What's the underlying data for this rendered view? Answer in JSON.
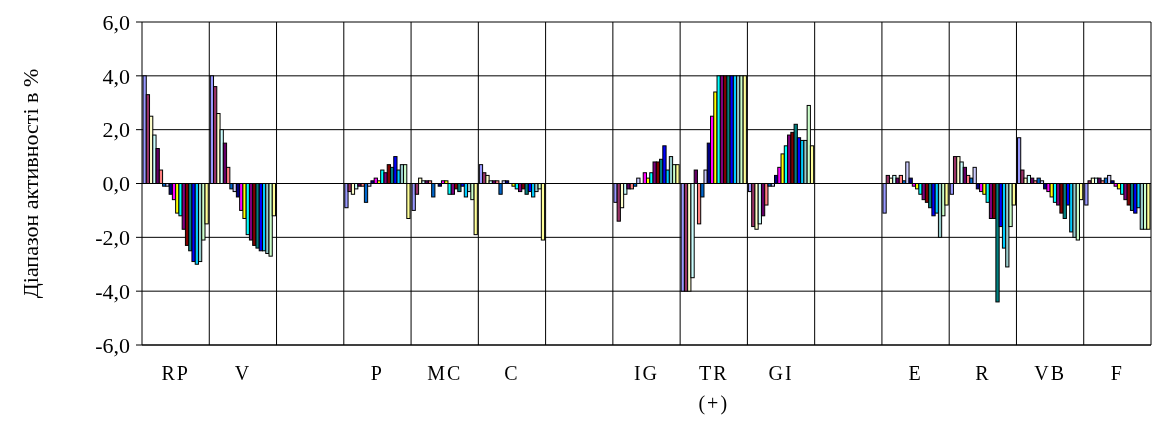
{
  "chart_data": {
    "type": "bar",
    "ylabel": "Діапазон активності в %",
    "categories": [
      "RP",
      "V",
      null,
      "P",
      "MC",
      "C",
      null,
      "IG",
      "TR (+)",
      "GI",
      null,
      "E",
      "R",
      "VB",
      "F"
    ],
    "ylim": [
      -6,
      6
    ],
    "yticks": [
      {
        "value": -6,
        "label": "-6,0"
      },
      {
        "value": -4,
        "label": "-4,0"
      },
      {
        "value": -2,
        "label": "-2,0"
      },
      {
        "value": 0,
        "label": "0,0"
      },
      {
        "value": 2,
        "label": "2,0"
      },
      {
        "value": 4,
        "label": "4,0"
      },
      {
        "value": 6,
        "label": "6,0"
      }
    ],
    "grid": true,
    "series": [
      {
        "color": "#9999ff",
        "values": [
          4.0,
          4.0,
          null,
          -0.9,
          -1.0,
          0.7,
          null,
          -0.7,
          -4.0,
          -0.3,
          null,
          -1.1,
          -0.4,
          1.7,
          -0.8
        ]
      },
      {
        "color": "#993366",
        "values": [
          3.3,
          3.6,
          null,
          -0.3,
          -0.4,
          0.4,
          null,
          -1.4,
          -4.0,
          -1.6,
          null,
          0.3,
          1.0,
          0.5,
          0.1
        ]
      },
      {
        "color": "#ffffcc",
        "values": [
          2.5,
          2.6,
          null,
          -0.4,
          0.2,
          0.3,
          null,
          -0.9,
          -4.0,
          -1.7,
          null,
          0.2,
          1.0,
          0.2,
          0.2
        ]
      },
      {
        "color": "#ccffff",
        "values": [
          1.8,
          2.0,
          null,
          -0.2,
          0.1,
          0.1,
          null,
          -0.4,
          -3.5,
          -1.5,
          null,
          0.3,
          0.8,
          0.3,
          0.2
        ]
      },
      {
        "color": "#660066",
        "values": [
          1.3,
          1.5,
          null,
          -0.1,
          0.1,
          0.1,
          null,
          -0.2,
          0.5,
          -1.2,
          null,
          0.2,
          0.6,
          0.2,
          0.2
        ]
      },
      {
        "color": "#ff8080",
        "values": [
          0.5,
          0.6,
          null,
          -0.1,
          0.1,
          0.1,
          null,
          -0.2,
          -1.5,
          -0.8,
          null,
          0.3,
          0.3,
          0.1,
          0.1
        ]
      },
      {
        "color": "#0066cc",
        "values": [
          -0.1,
          -0.2,
          null,
          -0.7,
          -0.5,
          -0.4,
          null,
          -0.1,
          -0.5,
          -0.1,
          null,
          0.1,
          0.2,
          0.2,
          0.2
        ]
      },
      {
        "color": "#ccccff",
        "values": [
          -0.1,
          -0.3,
          null,
          -0.1,
          0.0,
          0.1,
          null,
          0.2,
          0.5,
          -0.1,
          null,
          0.8,
          0.6,
          0.1,
          0.3
        ]
      },
      {
        "color": "#000080",
        "values": [
          -0.4,
          -0.5,
          null,
          0.1,
          -0.1,
          0.1,
          null,
          0.0,
          1.5,
          0.3,
          null,
          0.2,
          -0.2,
          -0.2,
          0.1
        ]
      },
      {
        "color": "#ff00ff",
        "values": [
          -0.6,
          -1.0,
          null,
          0.2,
          0.1,
          0.0,
          null,
          0.4,
          2.5,
          0.6,
          null,
          -0.1,
          -0.3,
          -0.3,
          -0.1
        ]
      },
      {
        "color": "#ffff00",
        "values": [
          -1.1,
          -1.3,
          null,
          0.1,
          0.1,
          -0.1,
          null,
          0.2,
          3.4,
          1.1,
          null,
          -0.2,
          -0.4,
          -0.5,
          -0.2
        ]
      },
      {
        "color": "#00ffff",
        "values": [
          -1.2,
          -1.9,
          null,
          0.5,
          -0.4,
          -0.2,
          null,
          0.4,
          4.0,
          1.4,
          null,
          -0.4,
          -0.7,
          -0.7,
          -0.4
        ]
      },
      {
        "color": "#800080",
        "values": [
          -1.7,
          -2.1,
          null,
          0.4,
          -0.4,
          -0.3,
          null,
          0.8,
          4.0,
          1.8,
          null,
          -0.6,
          -1.3,
          -0.8,
          -0.6
        ]
      },
      {
        "color": "#800000",
        "values": [
          -2.3,
          -2.3,
          null,
          0.7,
          -0.2,
          -0.2,
          null,
          0.8,
          4.0,
          1.9,
          null,
          -0.7,
          -1.3,
          -1.1,
          -0.8
        ]
      },
      {
        "color": "#008080",
        "values": [
          -2.5,
          -2.4,
          null,
          0.6,
          -0.3,
          -0.4,
          null,
          0.9,
          4.0,
          2.2,
          null,
          -0.9,
          -4.4,
          -1.3,
          -1.0
        ]
      },
      {
        "color": "#0000ff",
        "values": [
          -2.9,
          -2.5,
          null,
          1.0,
          -0.1,
          -0.3,
          null,
          1.4,
          4.0,
          1.7,
          null,
          -1.2,
          -1.6,
          -0.8,
          -1.1
        ]
      },
      {
        "color": "#00ccff",
        "values": [
          -3.0,
          -2.5,
          null,
          0.5,
          -0.5,
          -0.5,
          null,
          0.5,
          4.0,
          1.6,
          null,
          -1.1,
          -2.4,
          -1.8,
          -0.9
        ]
      },
      {
        "color": "#99cccc",
        "values": [
          -2.9,
          -2.6,
          null,
          0.7,
          -0.3,
          -0.3,
          null,
          1.0,
          4.0,
          1.6,
          null,
          -2.0,
          -3.1,
          -2.0,
          -1.7
        ]
      },
      {
        "color": "#ccffcc",
        "values": [
          -2.1,
          -2.7,
          null,
          0.7,
          -0.6,
          -0.2,
          null,
          0.7,
          4.0,
          2.9,
          null,
          -1.2,
          -1.6,
          -2.1,
          -1.7
        ]
      },
      {
        "color": "#ffff99",
        "values": [
          -1.5,
          -1.2,
          null,
          -1.3,
          -1.9,
          -2.1,
          null,
          0.7,
          4.0,
          1.4,
          null,
          -0.8,
          -0.8,
          -0.6,
          -1.7
        ]
      }
    ]
  }
}
